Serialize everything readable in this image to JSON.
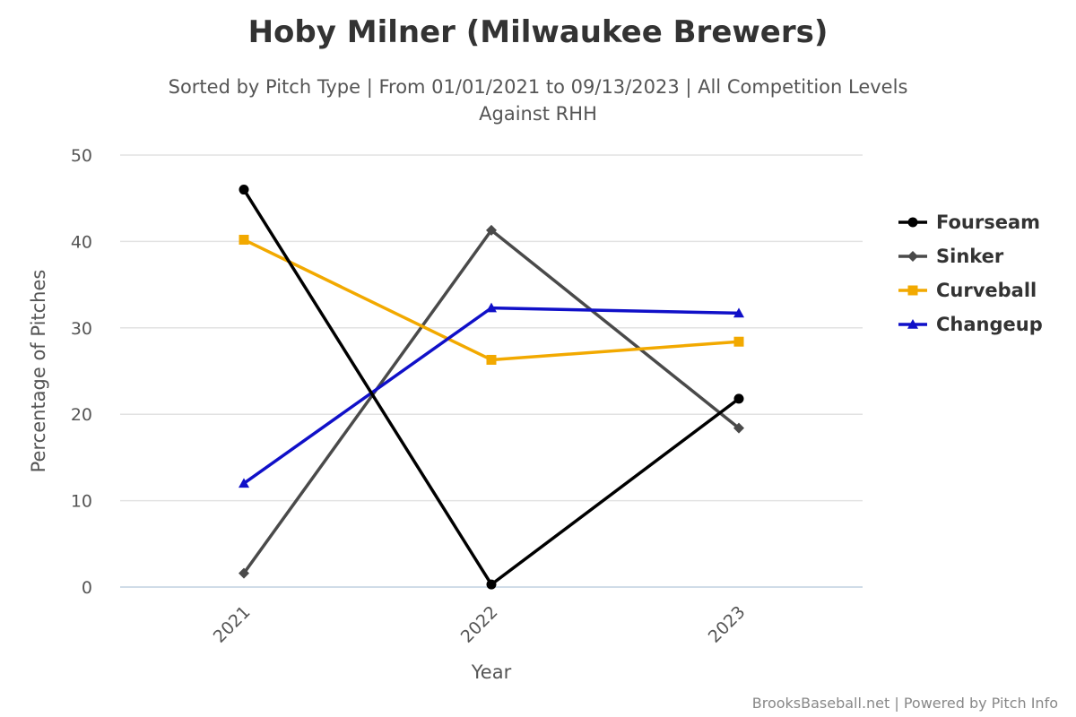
{
  "chart_data": {
    "type": "line",
    "title": "Hoby Milner (Milwaukee Brewers)",
    "subtitle_line1": "Sorted by Pitch Type | From 01/01/2021 to 09/13/2023 | All Competition Levels",
    "subtitle_line2": "Against RHH",
    "xlabel": "Year",
    "ylabel": "Percentage of Pitches",
    "categories": [
      "2021",
      "2022",
      "2023"
    ],
    "ylim": [
      0,
      50
    ],
    "yticks": [
      0,
      10,
      20,
      30,
      40,
      50
    ],
    "grid": true,
    "legend_position": "right",
    "series": [
      {
        "name": "Fourseam",
        "color": "#000000",
        "marker": "circle",
        "values": [
          46.0,
          0.3,
          21.8
        ]
      },
      {
        "name": "Sinker",
        "color": "#4a4a4a",
        "marker": "diamond",
        "values": [
          1.6,
          41.3,
          18.4
        ]
      },
      {
        "name": "Curveball",
        "color": "#f2a900",
        "marker": "square",
        "values": [
          40.2,
          26.3,
          28.4
        ]
      },
      {
        "name": "Changeup",
        "color": "#1010c8",
        "marker": "triangle",
        "values": [
          12.0,
          32.3,
          31.7
        ]
      }
    ],
    "credits": "BrooksBaseball.net | Powered by Pitch Info"
  }
}
